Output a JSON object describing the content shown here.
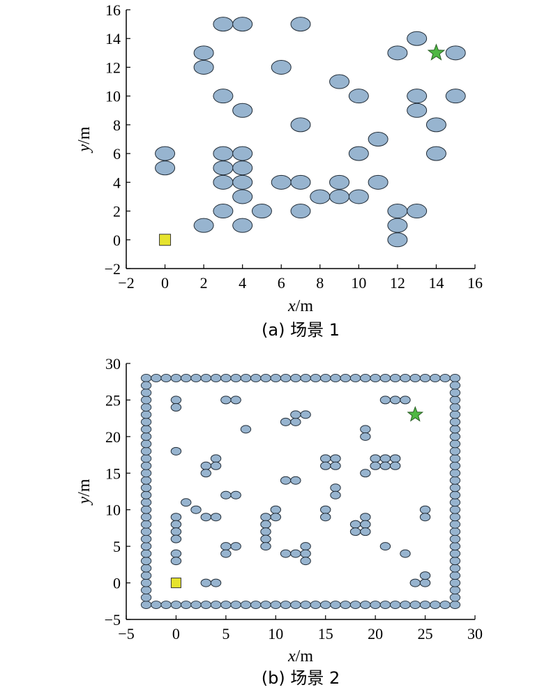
{
  "colors": {
    "obstacle": "#97b4cf",
    "start": "#e6e32e",
    "goal": "#4fb843"
  },
  "chart_data": [
    {
      "type": "scatter",
      "caption": "(a) 场景 1",
      "xlabel_var": "x",
      "xlabel_unit": "/m",
      "ylabel_var": "y",
      "ylabel_unit": "/m",
      "xlim": [
        -2,
        16
      ],
      "ylim": [
        -2,
        16
      ],
      "xticks": [
        "−2",
        "0",
        "2",
        "4",
        "6",
        "8",
        "10",
        "12",
        "14",
        "16"
      ],
      "yticks": [
        "−2",
        "0",
        "2",
        "4",
        "6",
        "8",
        "10",
        "12",
        "14",
        "16"
      ],
      "series": [
        {
          "role": "obstacles",
          "marker": "ellipse",
          "points": [
            [
              3,
              15
            ],
            [
              4,
              15
            ],
            [
              7,
              15
            ],
            [
              2,
              13
            ],
            [
              2,
              12
            ],
            [
              6,
              12
            ],
            [
              13,
              14
            ],
            [
              12,
              13
            ],
            [
              15,
              13
            ],
            [
              9,
              11
            ],
            [
              3,
              10
            ],
            [
              10,
              10
            ],
            [
              13,
              10
            ],
            [
              15,
              10
            ],
            [
              4,
              9
            ],
            [
              13,
              9
            ],
            [
              7,
              8
            ],
            [
              14,
              8
            ],
            [
              11,
              7
            ],
            [
              0,
              6
            ],
            [
              3,
              6
            ],
            [
              4,
              6
            ],
            [
              10,
              6
            ],
            [
              14,
              6
            ],
            [
              0,
              5
            ],
            [
              3,
              5
            ],
            [
              4,
              5
            ],
            [
              3,
              4
            ],
            [
              4,
              4
            ],
            [
              6,
              4
            ],
            [
              7,
              4
            ],
            [
              9,
              4
            ],
            [
              11,
              4
            ],
            [
              4,
              3
            ],
            [
              8,
              3
            ],
            [
              9,
              3
            ],
            [
              10,
              3
            ],
            [
              3,
              2
            ],
            [
              5,
              2
            ],
            [
              7,
              2
            ],
            [
              12,
              2
            ],
            [
              13,
              2
            ],
            [
              2,
              1
            ],
            [
              4,
              1
            ],
            [
              12,
              1
            ],
            [
              12,
              0
            ]
          ]
        },
        {
          "role": "start",
          "marker": "square",
          "points": [
            [
              0,
              0
            ]
          ]
        },
        {
          "role": "goal",
          "marker": "star",
          "points": [
            [
              14,
              13
            ]
          ]
        }
      ]
    },
    {
      "type": "scatter",
      "caption": "(b) 场景 2",
      "xlabel_var": "x",
      "xlabel_unit": "/m",
      "ylabel_var": "y",
      "ylabel_unit": "/m",
      "xlim": [
        -5,
        30
      ],
      "ylim": [
        -5,
        30
      ],
      "xticks": [
        "−5",
        "0",
        "5",
        "10",
        "15",
        "20",
        "25",
        "30"
      ],
      "yticks": [
        "−5",
        "0",
        "5",
        "10",
        "15",
        "20",
        "25",
        "30"
      ],
      "border": {
        "min": -3,
        "max": 28
      },
      "series": [
        {
          "role": "obstacles",
          "marker": "ellipse",
          "points": [
            [
              0,
              25
            ],
            [
              0,
              24
            ],
            [
              5,
              25
            ],
            [
              6,
              25
            ],
            [
              21,
              25
            ],
            [
              22,
              25
            ],
            [
              23,
              25
            ],
            [
              11,
              22
            ],
            [
              12,
              22
            ],
            [
              12,
              23
            ],
            [
              13,
              23
            ],
            [
              7,
              21
            ],
            [
              19,
              21
            ],
            [
              19,
              20
            ],
            [
              0,
              18
            ],
            [
              4,
              17
            ],
            [
              3,
              16
            ],
            [
              4,
              16
            ],
            [
              3,
              15
            ],
            [
              15,
              17
            ],
            [
              16,
              17
            ],
            [
              15,
              16
            ],
            [
              16,
              16
            ],
            [
              20,
              17
            ],
            [
              21,
              17
            ],
            [
              22,
              17
            ],
            [
              20,
              16
            ],
            [
              21,
              16
            ],
            [
              22,
              16
            ],
            [
              19,
              15
            ],
            [
              11,
              14
            ],
            [
              12,
              14
            ],
            [
              16,
              13
            ],
            [
              16,
              12
            ],
            [
              5,
              12
            ],
            [
              6,
              12
            ],
            [
              1,
              11
            ],
            [
              2,
              10
            ],
            [
              0,
              9
            ],
            [
              3,
              9
            ],
            [
              4,
              9
            ],
            [
              9,
              9
            ],
            [
              10,
              10
            ],
            [
              10,
              9
            ],
            [
              15,
              10
            ],
            [
              15,
              9
            ],
            [
              0,
              8
            ],
            [
              0,
              7
            ],
            [
              0,
              6
            ],
            [
              9,
              8
            ],
            [
              9,
              7
            ],
            [
              9,
              6
            ],
            [
              9,
              5
            ],
            [
              18,
              8
            ],
            [
              19,
              9
            ],
            [
              19,
              8
            ],
            [
              18,
              7
            ],
            [
              19,
              7
            ],
            [
              25,
              10
            ],
            [
              25,
              9
            ],
            [
              5,
              5
            ],
            [
              6,
              5
            ],
            [
              5,
              4
            ],
            [
              0,
              4
            ],
            [
              0,
              3
            ],
            [
              11,
              4
            ],
            [
              12,
              4
            ],
            [
              13,
              5
            ],
            [
              13,
              4
            ],
            [
              13,
              3
            ],
            [
              21,
              5
            ],
            [
              23,
              4
            ],
            [
              3,
              0
            ],
            [
              4,
              0
            ],
            [
              24,
              0
            ],
            [
              25,
              0
            ],
            [
              25,
              1
            ]
          ]
        },
        {
          "role": "start",
          "marker": "square",
          "points": [
            [
              0,
              0
            ]
          ]
        },
        {
          "role": "goal",
          "marker": "star",
          "points": [
            [
              24,
              23
            ]
          ]
        }
      ]
    }
  ]
}
